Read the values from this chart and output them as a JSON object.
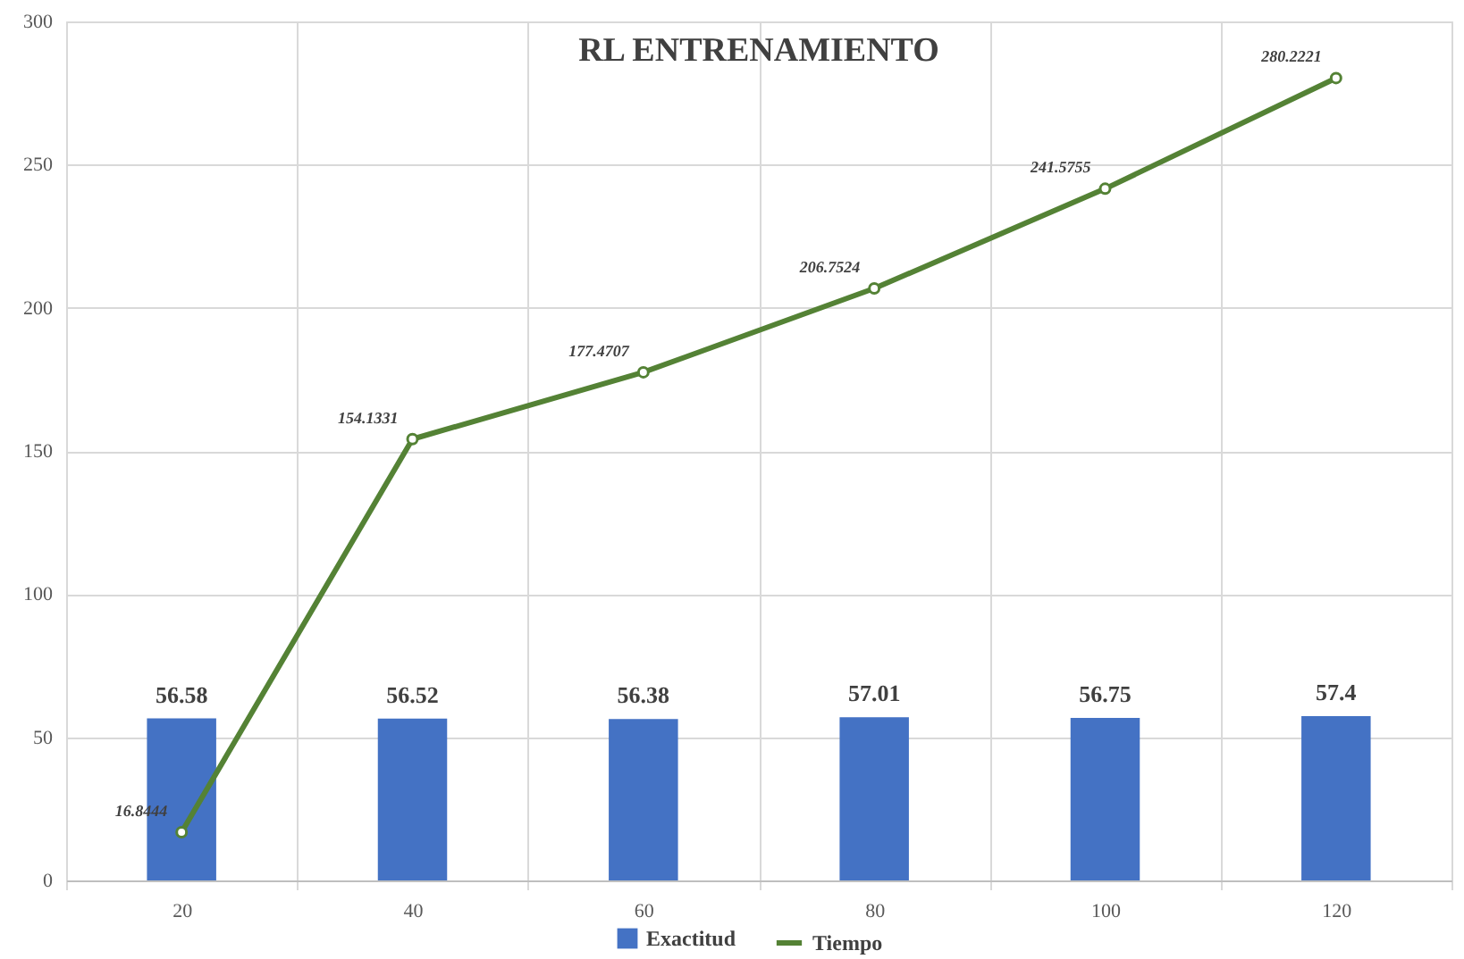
{
  "chart_data": {
    "type": "bar",
    "title": "RL ENTRENAMIENTO",
    "categories": [
      "20",
      "40",
      "60",
      "80",
      "100",
      "120"
    ],
    "series": [
      {
        "name": "Exactitud",
        "color": "#4472c4",
        "values": [
          56.58,
          56.52,
          56.38,
          57.01,
          56.75,
          57.4
        ]
      },
      {
        "name": "Tiempo",
        "type": "line",
        "color": "#548235",
        "values": [
          16.8444,
          154.1331,
          177.4707,
          206.7524,
          241.5755,
          280.2221
        ]
      }
    ],
    "ylim": [
      0,
      300
    ],
    "yticks": [
      0,
      50,
      100,
      150,
      200,
      250,
      300
    ],
    "grid": true,
    "legend": "bottom",
    "data_labels": true,
    "marker": "circle",
    "line_style": "solid"
  }
}
